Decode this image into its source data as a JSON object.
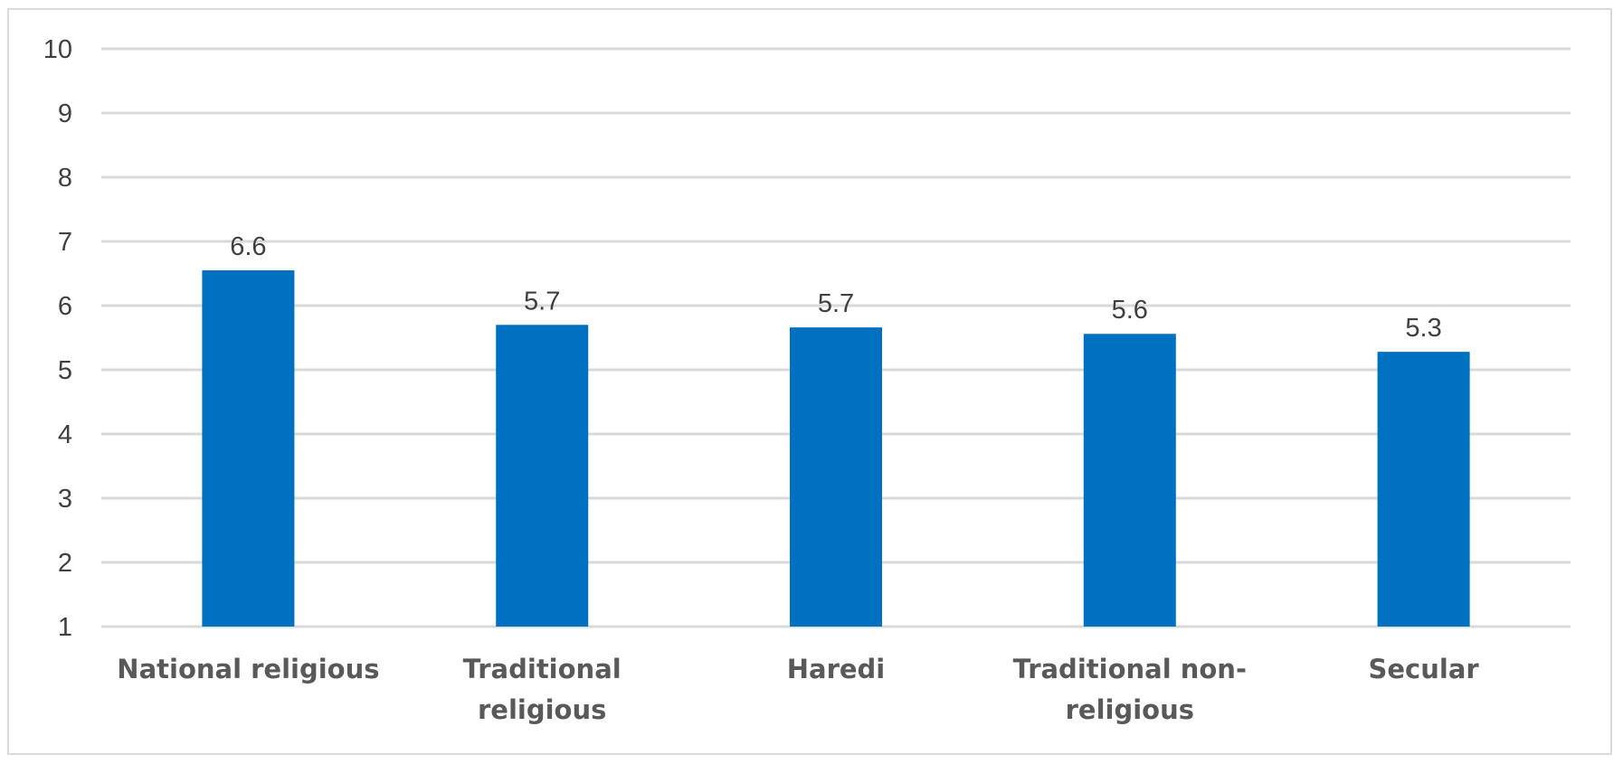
{
  "chart_data": {
    "type": "bar",
    "title": "",
    "xlabel": "",
    "ylabel": "",
    "categories": [
      [
        "National religious"
      ],
      [
        "Traditional",
        "religious"
      ],
      [
        "Haredi"
      ],
      [
        "Traditional non-",
        "religious"
      ],
      [
        "Secular"
      ]
    ],
    "values": [
      6.55,
      5.7,
      5.66,
      5.56,
      5.28
    ],
    "data_labels": [
      "6.6",
      "5.7",
      "5.7",
      "5.6",
      "5.3"
    ],
    "ylim": [
      1,
      10
    ],
    "yticks": [
      1,
      2,
      3,
      4,
      5,
      6,
      7,
      8,
      9,
      10
    ],
    "grid": true,
    "legend": "none",
    "colors": {
      "bar": "#0070c0",
      "grid": "#d9d9d9",
      "frame": "#d9d9d9"
    }
  }
}
